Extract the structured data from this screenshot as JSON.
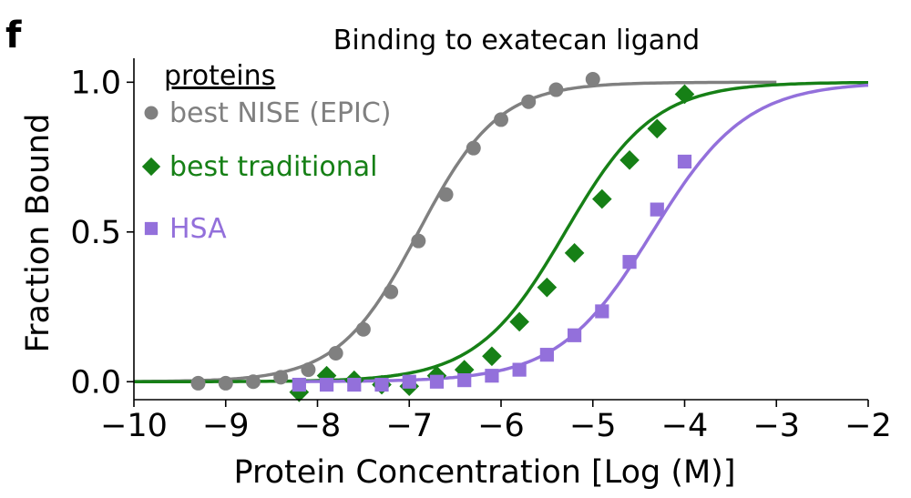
{
  "panel_label": "f",
  "chart_data": {
    "type": "scatter",
    "title": "Binding to exatecan ligand",
    "xlabel": "Protein Concentration [Log (M)]",
    "ylabel": "Fraction Bound",
    "xlim": [
      -10,
      -2
    ],
    "ylim": [
      -0.06,
      1.08
    ],
    "xticks": [
      -10,
      -9,
      -8,
      -7,
      -6,
      -5,
      -4,
      -3,
      -2
    ],
    "xtick_labels": [
      "−10",
      "−9",
      "−8",
      "−7",
      "−6",
      "−5",
      "−4",
      "−3",
      "−2"
    ],
    "yticks": [
      0,
      0.5,
      1
    ],
    "ytick_labels": [
      "0.0",
      "0.5",
      "1.0"
    ],
    "grid": false,
    "legend": {
      "title": "proteins",
      "placement": "top-left"
    },
    "series": [
      {
        "name": "best NISE (EPIC)",
        "color": "#808080",
        "marker": "circle",
        "fit": {
          "ec50_log": -6.9,
          "hill": 1.0,
          "x_range": [
            -10,
            -3
          ]
        },
        "x": [
          -9.3,
          -9.0,
          -8.7,
          -8.4,
          -8.1,
          -7.8,
          -7.5,
          -7.2,
          -6.9,
          -6.6,
          -6.3,
          -6.0,
          -5.7,
          -5.4,
          -5.0
        ],
        "y": [
          -0.005,
          -0.005,
          0.0,
          0.015,
          0.04,
          0.095,
          0.175,
          0.3,
          0.47,
          0.625,
          0.78,
          0.875,
          0.935,
          0.975,
          1.01
        ]
      },
      {
        "name": "best traditional",
        "color": "#168016",
        "marker": "diamond",
        "fit": {
          "ec50_log": -5.3,
          "hill": 0.9,
          "x_range": [
            -10,
            -2
          ]
        },
        "x": [
          -8.2,
          -7.9,
          -7.6,
          -7.3,
          -7.0,
          -6.7,
          -6.4,
          -6.1,
          -5.8,
          -5.5,
          -5.2,
          -4.9,
          -4.6,
          -4.3,
          -4.0
        ],
        "y": [
          -0.035,
          0.02,
          0.005,
          -0.01,
          -0.015,
          0.02,
          0.04,
          0.085,
          0.2,
          0.315,
          0.43,
          0.61,
          0.74,
          0.845,
          0.96
        ]
      },
      {
        "name": "HSA",
        "color": "#9370db",
        "marker": "square",
        "fit": {
          "ec50_log": -4.35,
          "hill": 0.85,
          "x_range": [
            -8.2,
            -2
          ]
        },
        "x": [
          -8.2,
          -7.9,
          -7.6,
          -7.3,
          -7.0,
          -6.7,
          -6.4,
          -6.1,
          -5.8,
          -5.5,
          -5.2,
          -4.9,
          -4.6,
          -4.3,
          -4.0
        ],
        "y": [
          -0.01,
          -0.01,
          -0.01,
          -0.01,
          0.0,
          0.0,
          0.005,
          0.02,
          0.04,
          0.09,
          0.155,
          0.235,
          0.4,
          0.575,
          0.735
        ]
      }
    ]
  }
}
